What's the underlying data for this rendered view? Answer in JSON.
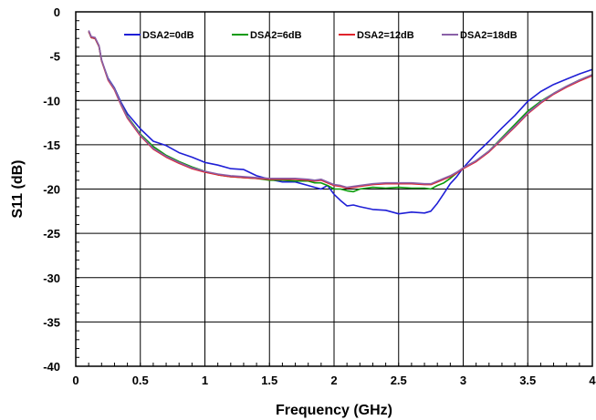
{
  "chart_data": {
    "type": "line",
    "title": "",
    "xlabel": "Frequency (GHz)",
    "ylabel": "S11 (dB)",
    "xlim": [
      0,
      4
    ],
    "ylim": [
      -40,
      0
    ],
    "x_ticks": [
      0,
      0.5,
      1,
      1.5,
      2,
      2.5,
      3,
      3.5,
      4
    ],
    "x_tick_labels": [
      "0",
      "0.5",
      "1",
      "1.5",
      "2",
      "2.5",
      "3",
      "3.5",
      "4"
    ],
    "y_ticks": [
      0,
      -5,
      -10,
      -15,
      -20,
      -25,
      -30,
      -35,
      -40
    ],
    "y_tick_labels": [
      "0",
      "-5",
      "-10",
      "-15",
      "-20",
      "-25",
      "-30",
      "-35",
      "-40"
    ],
    "grid": true,
    "legend_position": "top",
    "series": [
      {
        "name": "DSA2=0dB",
        "color": "#1f1fd6",
        "x": [
          0.1,
          0.12,
          0.15,
          0.18,
          0.2,
          0.25,
          0.3,
          0.35,
          0.4,
          0.5,
          0.6,
          0.7,
          0.8,
          0.9,
          1.0,
          1.1,
          1.2,
          1.3,
          1.4,
          1.5,
          1.6,
          1.7,
          1.8,
          1.85,
          1.9,
          1.95,
          2.0,
          2.05,
          2.1,
          2.15,
          2.2,
          2.3,
          2.4,
          2.5,
          2.6,
          2.7,
          2.75,
          2.8,
          2.85,
          2.9,
          2.95,
          3.0,
          3.1,
          3.2,
          3.3,
          3.4,
          3.5,
          3.6,
          3.7,
          3.8,
          3.9,
          4.0
        ],
        "y": [
          -2.2,
          -2.9,
          -3.0,
          -3.9,
          -5.5,
          -7.5,
          -8.6,
          -10.2,
          -11.5,
          -13.2,
          -14.6,
          -15.1,
          -15.9,
          -16.4,
          -17.0,
          -17.3,
          -17.7,
          -17.8,
          -18.5,
          -18.9,
          -19.2,
          -19.2,
          -19.6,
          -19.8,
          -20.0,
          -19.6,
          -20.6,
          -21.3,
          -21.9,
          -21.8,
          -22.0,
          -22.3,
          -22.4,
          -22.8,
          -22.6,
          -22.7,
          -22.5,
          -21.6,
          -20.5,
          -19.4,
          -18.6,
          -17.6,
          -16.0,
          -14.6,
          -13.1,
          -11.7,
          -10.1,
          -9.0,
          -8.2,
          -7.6,
          -7.0,
          -6.5
        ]
      },
      {
        "name": "DSA2=6dB",
        "color": "#0a9a0a",
        "x": [
          0.1,
          0.12,
          0.15,
          0.18,
          0.2,
          0.25,
          0.3,
          0.35,
          0.4,
          0.5,
          0.6,
          0.7,
          0.8,
          0.9,
          1.0,
          1.1,
          1.2,
          1.3,
          1.4,
          1.5,
          1.6,
          1.7,
          1.8,
          1.85,
          1.9,
          1.95,
          2.0,
          2.05,
          2.1,
          2.15,
          2.2,
          2.3,
          2.4,
          2.5,
          2.6,
          2.7,
          2.75,
          2.8,
          2.85,
          2.9,
          2.95,
          3.0,
          3.1,
          3.2,
          3.3,
          3.4,
          3.5,
          3.6,
          3.7,
          3.8,
          3.9,
          4.0
        ],
        "y": [
          -2.2,
          -2.9,
          -3.0,
          -3.9,
          -5.5,
          -7.6,
          -8.7,
          -10.4,
          -11.8,
          -13.8,
          -15.2,
          -16.2,
          -16.9,
          -17.5,
          -18.0,
          -18.4,
          -18.6,
          -18.7,
          -18.8,
          -19.0,
          -19.0,
          -19.1,
          -19.1,
          -19.3,
          -19.3,
          -19.6,
          -20.0,
          -20.0,
          -20.2,
          -20.3,
          -20.0,
          -19.8,
          -19.9,
          -19.8,
          -19.9,
          -19.9,
          -20.0,
          -19.6,
          -19.3,
          -18.8,
          -18.2,
          -17.6,
          -16.8,
          -15.7,
          -14.2,
          -12.7,
          -11.2,
          -10.1,
          -9.2,
          -8.4,
          -7.7,
          -7.1
        ]
      },
      {
        "name": "DSA2=12dB",
        "color": "#e0242c",
        "x": [
          0.1,
          0.12,
          0.15,
          0.18,
          0.2,
          0.25,
          0.3,
          0.35,
          0.4,
          0.5,
          0.6,
          0.7,
          0.8,
          0.9,
          1.0,
          1.1,
          1.2,
          1.3,
          1.4,
          1.5,
          1.6,
          1.7,
          1.8,
          1.85,
          1.9,
          1.95,
          2.0,
          2.05,
          2.1,
          2.15,
          2.2,
          2.3,
          2.4,
          2.5,
          2.6,
          2.7,
          2.75,
          2.8,
          2.85,
          2.9,
          2.95,
          3.0,
          3.1,
          3.2,
          3.3,
          3.4,
          3.5,
          3.6,
          3.7,
          3.8,
          3.9,
          4.0
        ],
        "y": [
          -2.2,
          -2.9,
          -3.0,
          -3.9,
          -5.5,
          -7.7,
          -8.8,
          -10.5,
          -12.0,
          -14.0,
          -15.5,
          -16.4,
          -17.1,
          -17.7,
          -18.1,
          -18.4,
          -18.6,
          -18.7,
          -18.8,
          -18.9,
          -18.9,
          -18.9,
          -19.0,
          -19.1,
          -19.0,
          -19.3,
          -19.6,
          -19.7,
          -19.9,
          -19.8,
          -19.7,
          -19.5,
          -19.4,
          -19.4,
          -19.4,
          -19.5,
          -19.5,
          -19.2,
          -18.9,
          -18.6,
          -18.2,
          -17.7,
          -16.9,
          -15.8,
          -14.4,
          -13.0,
          -11.5,
          -10.3,
          -9.3,
          -8.5,
          -7.8,
          -7.2
        ]
      },
      {
        "name": "DSA2=18dB",
        "color": "#8a60a8",
        "x": [
          0.1,
          0.12,
          0.15,
          0.18,
          0.2,
          0.25,
          0.3,
          0.35,
          0.4,
          0.5,
          0.6,
          0.7,
          0.8,
          0.9,
          1.0,
          1.1,
          1.2,
          1.3,
          1.4,
          1.5,
          1.6,
          1.7,
          1.8,
          1.85,
          1.9,
          1.95,
          2.0,
          2.05,
          2.1,
          2.15,
          2.2,
          2.3,
          2.4,
          2.5,
          2.6,
          2.7,
          2.75,
          2.8,
          2.85,
          2.9,
          2.95,
          3.0,
          3.1,
          3.2,
          3.3,
          3.4,
          3.5,
          3.6,
          3.7,
          3.8,
          3.9,
          4.0
        ],
        "y": [
          -2.1,
          -2.8,
          -2.9,
          -3.8,
          -5.4,
          -7.6,
          -8.7,
          -10.4,
          -11.9,
          -13.9,
          -15.4,
          -16.3,
          -17.0,
          -17.6,
          -18.0,
          -18.3,
          -18.5,
          -18.6,
          -18.7,
          -18.8,
          -18.8,
          -18.8,
          -18.9,
          -19.0,
          -18.9,
          -19.2,
          -19.5,
          -19.6,
          -19.8,
          -19.7,
          -19.6,
          -19.4,
          -19.3,
          -19.3,
          -19.3,
          -19.4,
          -19.4,
          -19.1,
          -18.8,
          -18.5,
          -18.1,
          -17.6,
          -16.8,
          -15.7,
          -14.3,
          -12.9,
          -11.4,
          -10.2,
          -9.2,
          -8.4,
          -7.7,
          -7.1
        ]
      }
    ]
  }
}
